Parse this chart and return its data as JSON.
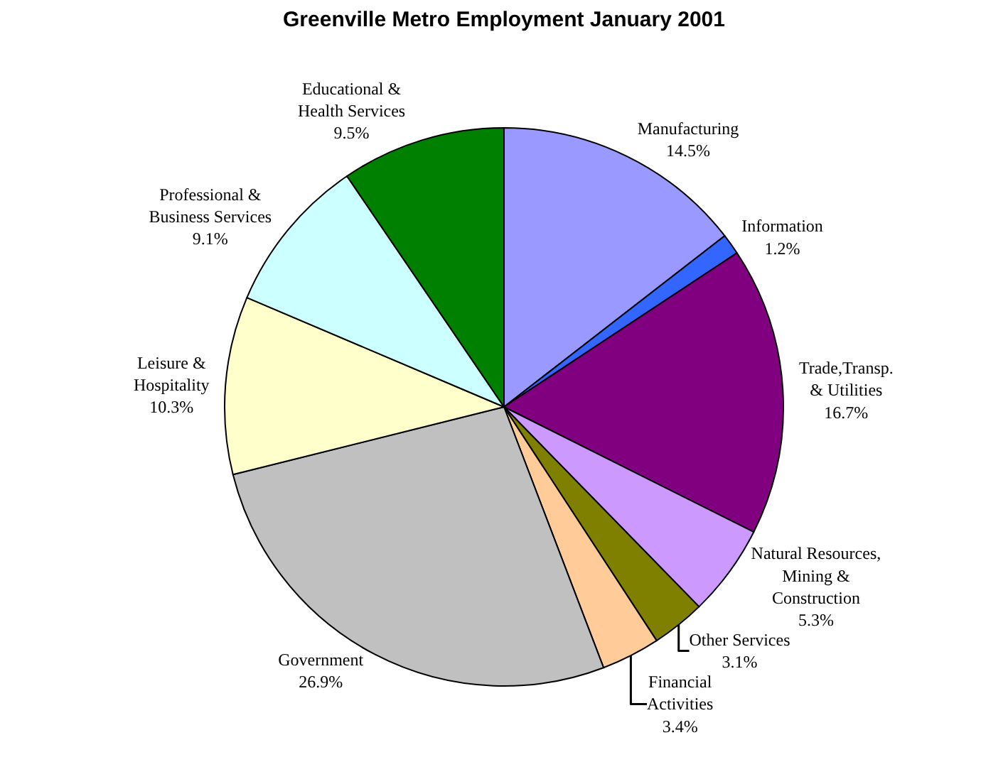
{
  "chart_data": {
    "type": "pie",
    "title": "Greenville Metro Employment January 2001",
    "categories": [
      "Manufacturing",
      "Information",
      "Trade,Transp. & Utilities",
      "Natural Resources, Mining & Construction",
      "Other Services",
      "Financial Activities",
      "Government",
      "Leisure & Hospitality",
      "Professional & Business Services",
      "Educational & Health Services"
    ],
    "values": [
      14.5,
      1.2,
      16.7,
      5.3,
      3.1,
      3.4,
      26.9,
      10.3,
      9.1,
      9.5
    ],
    "value_labels": [
      "14.5%",
      "1.2%",
      "16.7%",
      "5.3%",
      "3.1%",
      "3.4%",
      "26.9%",
      "10.3%",
      "9.1%",
      "9.5%"
    ],
    "colors": [
      "#9999ff",
      "#3366ff",
      "#800080",
      "#cc99ff",
      "#808000",
      "#ffcc99",
      "#c0c0c0",
      "#ffffcc",
      "#ccffff",
      "#008000"
    ],
    "legend": false
  }
}
